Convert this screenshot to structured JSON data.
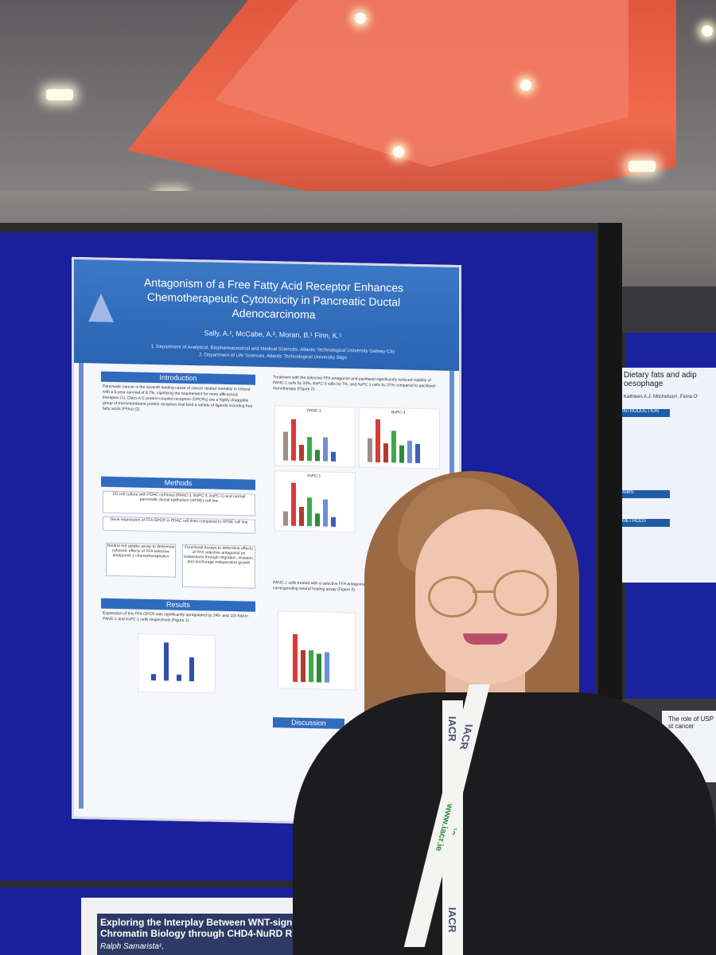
{
  "poster": {
    "title": "Antagonism of a Free Fatty Acid Receptor Enhances Chemotherapeutic Cytotoxicity in Pancreatic Ductal Adenocarcinoma",
    "authors": "Sally, A.¹, McCabe, A.², Moran, B.¹ Finn, K.¹",
    "affiliation_1": "1. Department of Analytical, Biopharmaceutical and Medical Sciences, Atlantic Technological University Galway City",
    "affiliation_2": "2. Department of Life Sciences, Atlantic Technological University Sligo",
    "sections": {
      "introduction": "Introduction",
      "methods": "Methods",
      "results": "Results",
      "discussion": "Discussion"
    },
    "intro_text": "Pancreatic cancer is the seventh leading cause of cancer related mortality in Ireland with a 5-year survival of 9.7%, signifying the requirement for more efficacious therapies (1). Class A G protein-coupled receptors (GPCRs) are a highly druggable group of transmembrane protein receptors that bind a variety of ligands including free fatty acids (FFAs) (2).",
    "methods_boxes": [
      "2D cell culture with PDAC cell lines (PANC-1, BxPC-3, AsPC-1) and normal pancreatic ductal epithelium (HPDE) cell line",
      "Gene expression of FFA GPCR in PDAC cell lines compared to HPDE cell line",
      "Neutral red uptake assay to determine cytotoxic effects of FFA selective antagonist ± chemotherapeutics",
      "Functional Assays to determine effects of FFA selective antagonist on metastases through migration, invasion, and anchorage independent growth"
    ],
    "results_text": "Expression of this FFA GPCR was significantly upregulated by 240- and 115-fold in PANC-1 and AsPC-1 cells respectively (Figure 1).",
    "right_text": "Treatment with the selective FFA antagonist and paclitaxel significantly reduced viability of PANC-1 cells by 33%, BxPC-3 cells by 7%, and AsPC-1 cells by 37% compared to paclitaxel monotherapy (Figure 2).",
    "chart_titles": [
      "PANC-1",
      "BxPC-3",
      "AsPC-1"
    ],
    "panc_label": "PANC-1 cells treated with a selective FFA antagonist reduced migration compared to the corresponding wound healing assay (Figure 3)."
  },
  "right_poster": {
    "title": "Dietary fats and adip oesophage",
    "subtitle": "Kathleen A.J. Mitchelson¹, Fiona O'",
    "sections": [
      "INTRODUCTION",
      "AIMS",
      "METHODS"
    ],
    "lower_title": "The role of USP st cancer"
  },
  "bottom_poster": {
    "title": "Exploring the Interplay Between WNT-sign Chromatin Biology through CHD4-NuRD R",
    "author": "Ralph Samarista¹,"
  },
  "lanyard": {
    "brand": "IACR",
    "url": "www.iacr.ie"
  },
  "colors": {
    "board": "#1a1f9c",
    "ceiling_glow": "#f06a4e",
    "poster_header": "#2f6cc0"
  }
}
